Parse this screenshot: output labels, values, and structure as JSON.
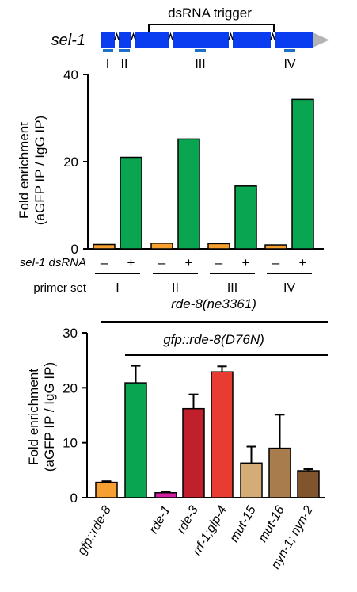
{
  "gene_diagram": {
    "gene_label": "sel-1",
    "trigger_label": "dsRNA trigger",
    "colors": {
      "exon": "#0a3cf0",
      "utr": "#b4b4b4",
      "amplicon": "#1e6fc8"
    },
    "amplicons": [
      "I",
      "II",
      "III",
      "IV"
    ]
  },
  "chart_data": [
    {
      "type": "bar",
      "ylabel_line1": "Fold enrichment",
      "ylabel_line2": "(aGFP IP / IgG IP)",
      "ylim": [
        0,
        40
      ],
      "yticks": [
        0,
        20,
        40
      ],
      "row1_label": "sel-1 dsRNA",
      "row2_label": "primer set",
      "groups": [
        "I",
        "II",
        "III",
        "IV"
      ],
      "conditions": [
        "–",
        "+"
      ],
      "series": [
        {
          "values": [
            1.0,
            1.3,
            1.2,
            0.9
          ],
          "color": "#f5a030"
        },
        {
          "values": [
            21.0,
            25.2,
            14.4,
            34.3
          ],
          "color": "#0aa550"
        }
      ]
    },
    {
      "type": "bar",
      "ylabel_line1": "Fold enrichment",
      "ylabel_line2": "(aGFP IP / IgG IP)",
      "ylim": [
        0,
        30
      ],
      "yticks": [
        0,
        10,
        20,
        30
      ],
      "top_bracket_label": "rde-8(ne3361)",
      "second_bracket_label": "gfp::rde-8(D76N)",
      "categories": [
        "gfp::rde-8",
        "",
        "rde-1",
        "rde-3",
        "rrf-1;glp-4",
        "mut-15",
        "mut-16",
        "nyn-1; nyn-2"
      ],
      "values": [
        2.8,
        20.9,
        0.9,
        16.2,
        22.9,
        6.3,
        9.0,
        4.9
      ],
      "errors": [
        0.2,
        3.1,
        0.2,
        2.6,
        1.0,
        3.0,
        6.1,
        0.3
      ],
      "colors": [
        "#f5a030",
        "#0aa550",
        "#d020a0",
        "#c0202c",
        "#e83c32",
        "#d4ac78",
        "#a87c4c",
        "#80542c"
      ]
    }
  ]
}
